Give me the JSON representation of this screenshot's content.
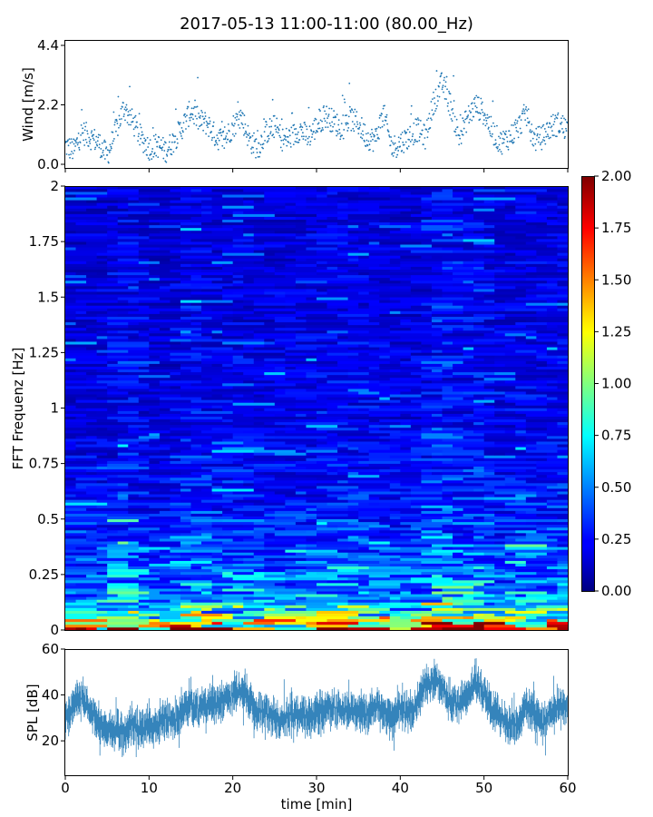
{
  "chart_data": [
    {
      "id": "wind",
      "type": "scatter",
      "title": "2017-05-13 11:00-11:00 (80.00_Hz)",
      "ylabel": "Wind [m/s]",
      "xlim": [
        0,
        60
      ],
      "ylim": [
        0,
        4.4
      ],
      "yticks": [
        "0.0",
        "2.2",
        "4.4"
      ],
      "color": "#1f77b4",
      "series": [
        {
          "x": [
            0,
            1,
            2,
            3,
            4,
            5,
            6,
            7,
            8,
            9,
            10,
            11,
            12,
            13,
            14,
            15,
            16,
            17,
            18,
            19,
            20,
            21,
            22,
            23,
            24,
            25,
            26,
            27,
            28,
            29,
            30,
            31,
            32,
            33,
            34,
            35,
            36,
            37,
            38,
            39,
            40,
            41,
            42,
            43,
            44,
            45,
            46,
            47,
            48,
            49,
            50,
            51,
            52,
            53,
            54,
            55,
            56,
            57,
            58,
            59,
            60
          ],
          "y": [
            0.7,
            0.5,
            1.2,
            1.0,
            0.8,
            0.3,
            1.2,
            2.1,
            1.6,
            1.0,
            0.6,
            0.7,
            0.5,
            0.9,
            1.4,
            2.0,
            1.6,
            1.5,
            1.0,
            0.9,
            1.4,
            1.8,
            0.9,
            0.6,
            1.2,
            1.4,
            0.9,
            1.0,
            1.3,
            1.0,
            1.4,
            1.8,
            1.6,
            1.3,
            1.7,
            1.5,
            1.0,
            0.9,
            1.9,
            0.6,
            0.8,
            1.0,
            1.3,
            1.0,
            2.3,
            3.0,
            2.2,
            1.0,
            1.7,
            2.2,
            1.9,
            1.2,
            0.8,
            1.0,
            1.3,
            1.9,
            0.9,
            1.0,
            1.4,
            1.5,
            1.3
          ]
        }
      ]
    },
    {
      "id": "spectrogram",
      "type": "heatmap",
      "ylabel": "FFT Frequenz [Hz]",
      "xlim": [
        0,
        60
      ],
      "ylim": [
        0,
        2
      ],
      "yticks": [
        "0",
        "0.25",
        "0.5",
        "0.75",
        "1",
        "1.25",
        "1.5",
        "1.75",
        "2"
      ],
      "colorscale": "jet",
      "colorbar": {
        "range": [
          0,
          2
        ],
        "ticks": [
          "0.00",
          "0.25",
          "0.50",
          "0.75",
          "1.00",
          "1.25",
          "1.50",
          "1.75",
          "2.00"
        ]
      },
      "low_freq_profile": {
        "frequency": [
          0.0,
          0.05,
          0.1,
          0.15,
          0.25,
          0.35,
          0.5,
          0.75,
          1.0,
          1.5,
          2.0
        ],
        "typical_value": [
          1.7,
          0.95,
          0.7,
          0.55,
          0.45,
          0.38,
          0.32,
          0.25,
          0.22,
          0.2,
          0.18
        ]
      }
    },
    {
      "id": "spl",
      "type": "line",
      "xlabel": "time [min]",
      "ylabel": "SPL [dB]",
      "xlim": [
        0,
        60
      ],
      "ylim": [
        5,
        60
      ],
      "xticks": [
        "0",
        "10",
        "20",
        "30",
        "40",
        "50",
        "60"
      ],
      "yticks": [
        "20",
        "40",
        "60"
      ],
      "color": "#1f77b4",
      "series": [
        {
          "x": [
            0,
            1,
            2,
            3,
            4,
            5,
            6,
            7,
            8,
            9,
            10,
            11,
            12,
            13,
            14,
            15,
            16,
            17,
            18,
            19,
            20,
            21,
            22,
            23,
            24,
            25,
            26,
            27,
            28,
            29,
            30,
            31,
            32,
            33,
            34,
            35,
            36,
            37,
            38,
            39,
            40,
            41,
            42,
            43,
            44,
            45,
            46,
            47,
            48,
            49,
            50,
            51,
            52,
            53,
            54,
            55,
            56,
            57,
            58,
            59,
            60
          ],
          "y": [
            30,
            36,
            39,
            33,
            28,
            24,
            26,
            22,
            27,
            25,
            27,
            26,
            30,
            29,
            33,
            36,
            34,
            37,
            35,
            38,
            40,
            42,
            38,
            33,
            32,
            30,
            29,
            31,
            32,
            30,
            33,
            33,
            35,
            32,
            34,
            33,
            31,
            36,
            33,
            31,
            34,
            32,
            36,
            44,
            46,
            43,
            37,
            36,
            40,
            46,
            41,
            34,
            30,
            27,
            28,
            36,
            33,
            27,
            33,
            36,
            34
          ]
        }
      ]
    }
  ]
}
